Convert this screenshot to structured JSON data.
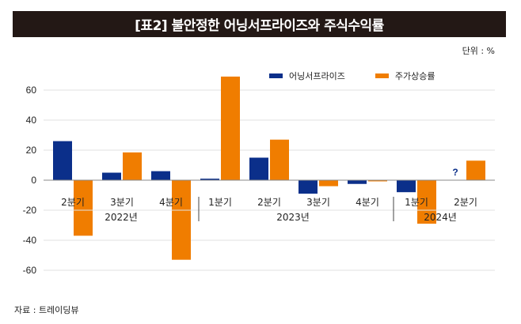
{
  "title": "[표2] 불안정한 어닝서프라이즈와 주식수익률",
  "unit": "단위 : %",
  "source": "자료 : 트레이딩뷰",
  "colors": {
    "earnings": "#0b2f8a",
    "stock": "#f07d00",
    "title_bg": "#231815",
    "grid": "#e2e2e2",
    "axis": "#888888"
  },
  "chart_data": {
    "type": "bar",
    "title": "[표2] 불안정한 어닝서프라이즈와 주식수익률",
    "xlabel": "",
    "ylabel": "",
    "unit": "%",
    "ylim": [
      -60,
      60
    ],
    "yticks": [
      60,
      40,
      20,
      0,
      -20,
      -40,
      -60
    ],
    "grid": true,
    "legend_position": "top-right",
    "categories": [
      "2분기",
      "3분기",
      "4분기",
      "1분기",
      "2분기",
      "3분기",
      "4분기",
      "1분기",
      "2분기"
    ],
    "year_groups": [
      {
        "label": "2022년",
        "start": 0,
        "end": 2
      },
      {
        "label": "2023년",
        "start": 3,
        "end": 6
      },
      {
        "label": "2024년",
        "start": 7,
        "end": 8
      }
    ],
    "series": [
      {
        "name": "어닝서프라이즈",
        "color": "#0b2f8a",
        "values": [
          26,
          5,
          6,
          1,
          15,
          -9,
          -2.5,
          -8,
          null
        ]
      },
      {
        "name": "주가상승률",
        "color": "#f07d00",
        "values": [
          -37,
          18.5,
          -53,
          69,
          27,
          -4,
          -0.5,
          -29,
          13
        ]
      }
    ],
    "annotations": [
      {
        "category_index": 8,
        "series": "어닝서프라이즈",
        "text": "?"
      }
    ]
  }
}
